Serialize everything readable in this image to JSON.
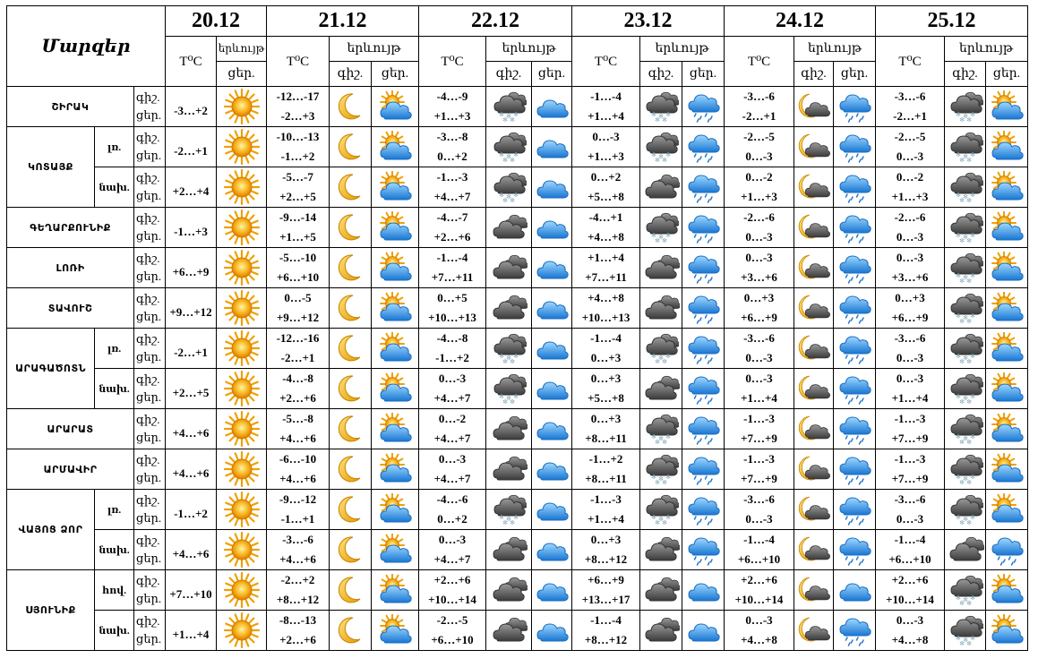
{
  "header": {
    "title": "Մարզեր",
    "dates": [
      "20.12",
      "21.12",
      "22.12",
      "23.12",
      "24.12",
      "25.12"
    ],
    "temp_col": "T⁰C",
    "phenomenon": "երևույթ",
    "phenomenon_day1": "երևույթ",
    "night": "գիշ.",
    "day": "ցեր."
  },
  "icon_legend": {
    "sun": "sun-icon",
    "moon": "moon-icon",
    "partly": "partly-cloudy-icon",
    "snow": "snow-cloud-icon",
    "cloudy": "cloudy-icon",
    "rain": "rain-cloud-icon",
    "night_cloud": "moon-cloud-icon",
    "blue": "blue-cloud-icon"
  },
  "rows": [
    {
      "region": "ՇԻՐԱԿ",
      "sub": "",
      "n": "գիշ.",
      "d": "ցեր.",
      "d20": "-3…+2",
      "t": [
        [
          "-12…-17",
          "-2…+3"
        ],
        [
          "-4…-9",
          "+1…+3"
        ],
        [
          "-1…-4",
          "+1…+4"
        ],
        [
          "-3…-6",
          "-2…+1"
        ],
        [
          "-3…-6",
          "-2…+1"
        ]
      ],
      "i": [
        [
          "moon",
          "partly"
        ],
        [
          "snow",
          "blue"
        ],
        [
          "snow",
          "rain"
        ],
        [
          "night_cloud",
          "rain"
        ],
        [
          "snow",
          "partly"
        ]
      ]
    },
    {
      "region": "ԿՈՏԱՅՔ",
      "sub": "լռ.",
      "n": "գիշ.",
      "d": "ցեր.",
      "d20": "-2…+1",
      "t": [
        [
          "-10…-13",
          "-1…+2"
        ],
        [
          "-3…-8",
          "0…+2"
        ],
        [
          "0…-3",
          "+1…+3"
        ],
        [
          "-2…-5",
          "0…-3"
        ],
        [
          "-2…-5",
          "0…-3"
        ]
      ],
      "i": [
        [
          "moon",
          "partly"
        ],
        [
          "snow",
          "blue"
        ],
        [
          "snow",
          "rain"
        ],
        [
          "night_cloud",
          "rain"
        ],
        [
          "snow",
          "partly"
        ]
      ]
    },
    {
      "region": "",
      "sub": "նախ.",
      "n": "գիշ.",
      "d": "ցեր.",
      "d20": "+2…+4",
      "t": [
        [
          "-5…-7",
          "+2…+5"
        ],
        [
          "-1…-3",
          "+4…+7"
        ],
        [
          "0…+2",
          "+5…+8"
        ],
        [
          "0…-2",
          "+1…+3"
        ],
        [
          "0…-2",
          "+1…+3"
        ]
      ],
      "i": [
        [
          "moon",
          "partly"
        ],
        [
          "snow",
          "blue"
        ],
        [
          "cloudy",
          "rain"
        ],
        [
          "night_cloud",
          "rain"
        ],
        [
          "snow",
          "partly"
        ]
      ]
    },
    {
      "region": "ԳԵՂԱՐՔՈՒՆԻՔ",
      "sub": "",
      "n": "գիշ.",
      "d": "ցեր.",
      "d20": "-1…+3",
      "t": [
        [
          "-9…-14",
          "+1…+5"
        ],
        [
          "-4…-7",
          "+2…+6"
        ],
        [
          "-4…+1",
          "+4…+8"
        ],
        [
          "-2…-6",
          "0…-3"
        ],
        [
          "-2…-6",
          "0…-3"
        ]
      ],
      "i": [
        [
          "moon",
          "partly"
        ],
        [
          "cloudy",
          "blue"
        ],
        [
          "snow",
          "rain"
        ],
        [
          "night_cloud",
          "rain"
        ],
        [
          "snow",
          "partly"
        ]
      ]
    },
    {
      "region": "ԼՈՌԻ",
      "sub": "",
      "n": "գիշ.",
      "d": "ցեր.",
      "d20": "+6…+9",
      "t": [
        [
          "-5…-10",
          "+6…+10"
        ],
        [
          "-1…-4",
          "+7…+11"
        ],
        [
          "+1…+4",
          "+7…+11"
        ],
        [
          "0…-3",
          "+3…+6"
        ],
        [
          "0…-3",
          "+3…+6"
        ]
      ],
      "i": [
        [
          "moon",
          "partly"
        ],
        [
          "cloudy",
          "blue"
        ],
        [
          "cloudy",
          "rain"
        ],
        [
          "night_cloud",
          "rain"
        ],
        [
          "snow",
          "partly"
        ]
      ]
    },
    {
      "region": "ՏԱՎՈՒՇ",
      "sub": "",
      "n": "գիշ.",
      "d": "ցեր.",
      "d20": "+9…+12",
      "t": [
        [
          "0…-5",
          "+9…+12"
        ],
        [
          "0…+5",
          "+10…+13"
        ],
        [
          "+4…+8",
          "+10…+13"
        ],
        [
          "0…+3",
          "+6…+9"
        ],
        [
          "0…+3",
          "+6…+9"
        ]
      ],
      "i": [
        [
          "moon",
          "partly"
        ],
        [
          "cloudy",
          "blue"
        ],
        [
          "cloudy",
          "rain"
        ],
        [
          "night_cloud",
          "rain"
        ],
        [
          "snow",
          "partly"
        ]
      ]
    },
    {
      "region": "ԱՐԱԳԱԾՈՏՆ",
      "sub": "լռ.",
      "n": "գիշ.",
      "d": "ցեր.",
      "d20": "-2…+1",
      "t": [
        [
          "-12…-16",
          "-2…+1"
        ],
        [
          "-4…-8",
          "-1…+2"
        ],
        [
          "-1…-4",
          "0…+3"
        ],
        [
          "-3…-6",
          "0…-3"
        ],
        [
          "-3…-6",
          "0…-3"
        ]
      ],
      "i": [
        [
          "moon",
          "partly"
        ],
        [
          "snow",
          "blue"
        ],
        [
          "snow",
          "rain"
        ],
        [
          "night_cloud",
          "rain"
        ],
        [
          "snow",
          "partly"
        ]
      ]
    },
    {
      "region": "",
      "sub": "նախ.",
      "n": "գիշ.",
      "d": "ցեր.",
      "d20": "+2…+5",
      "t": [
        [
          "-4…-8",
          "+2…+6"
        ],
        [
          "0…-3",
          "+4…+7"
        ],
        [
          "0…+3",
          "+5…+8"
        ],
        [
          "0…-3",
          "+1…+4"
        ],
        [
          "0…-3",
          "+1…+4"
        ]
      ],
      "i": [
        [
          "moon",
          "partly"
        ],
        [
          "snow",
          "blue"
        ],
        [
          "cloudy",
          "rain"
        ],
        [
          "night_cloud",
          "rain"
        ],
        [
          "snow",
          "partly"
        ]
      ]
    },
    {
      "region": "ԱՐԱՐԱՏ",
      "sub": "",
      "n": "գիշ.",
      "d": "ցեր.",
      "d20": "+4…+6",
      "t": [
        [
          "-5…-8",
          "+4…+6"
        ],
        [
          "0…-2",
          "+4…+7"
        ],
        [
          "0…+3",
          "+8…+11"
        ],
        [
          "-1…-3",
          "+7…+9"
        ],
        [
          "-1…-3",
          "+7…+9"
        ]
      ],
      "i": [
        [
          "moon",
          "partly"
        ],
        [
          "cloudy",
          "blue"
        ],
        [
          "snow",
          "rain"
        ],
        [
          "night_cloud",
          "rain"
        ],
        [
          "snow",
          "partly"
        ]
      ]
    },
    {
      "region": "ԱՐՄԱՎԻՐ",
      "sub": "",
      "n": "գիշ.",
      "d": "ցեր.",
      "d20": "+4…+6",
      "t": [
        [
          "-6…-10",
          "+4…+6"
        ],
        [
          "0…-3",
          "+4…+7"
        ],
        [
          "-1…+2",
          "+8…+11"
        ],
        [
          "-1…-3",
          "+7…+9"
        ],
        [
          "-1…-3",
          "+7…+9"
        ]
      ],
      "i": [
        [
          "moon",
          "partly"
        ],
        [
          "cloudy",
          "blue"
        ],
        [
          "snow",
          "rain"
        ],
        [
          "night_cloud",
          "rain"
        ],
        [
          "snow",
          "partly"
        ]
      ]
    },
    {
      "region": "ՎԱՅՈՑ ՁՈՐ",
      "sub": "լռ.",
      "n": "գիշ.",
      "d": "ցեր.",
      "d20": "-1…+2",
      "t": [
        [
          "-9…-12",
          "-1…+1"
        ],
        [
          "-4…-6",
          "0…+2"
        ],
        [
          "-1…-3",
          "+1…+4"
        ],
        [
          "-3…-6",
          "0…-3"
        ],
        [
          "-3…-6",
          "0…-3"
        ]
      ],
      "i": [
        [
          "moon",
          "partly"
        ],
        [
          "snow",
          "blue"
        ],
        [
          "snow",
          "rain"
        ],
        [
          "night_cloud",
          "rain"
        ],
        [
          "snow",
          "partly"
        ]
      ]
    },
    {
      "region": "",
      "sub": "նախ.",
      "n": "գիշ.",
      "d": "ցեր.",
      "d20": "+4…+6",
      "t": [
        [
          "-3…-6",
          "+4…+6"
        ],
        [
          "0…-3",
          "+4…+7"
        ],
        [
          "0…+3",
          "+8…+12"
        ],
        [
          "-1…-4",
          "+6…+10"
        ],
        [
          "-1…-4",
          "+6…+10"
        ]
      ],
      "i": [
        [
          "moon",
          "partly"
        ],
        [
          "cloudy",
          "blue"
        ],
        [
          "cloudy",
          "rain"
        ],
        [
          "night_cloud",
          "rain"
        ],
        [
          "cloudy",
          "rain"
        ]
      ]
    },
    {
      "region": "ՍՅՈՒՆԻՔ",
      "sub": "հով.",
      "n": "գիշ.",
      "d": "ցեր.",
      "d20": "+7…+10",
      "t": [
        [
          "-2…+2",
          "+8…+12"
        ],
        [
          "+2…+6",
          "+10…+14"
        ],
        [
          "+6…+9",
          "+13…+17"
        ],
        [
          "+2…+6",
          "+10…+14"
        ],
        [
          "+2…+6",
          "+10…+14"
        ]
      ],
      "i": [
        [
          "moon",
          "partly"
        ],
        [
          "cloudy",
          "blue"
        ],
        [
          "cloudy",
          "blue"
        ],
        [
          "night_cloud",
          "blue"
        ],
        [
          "snow",
          "partly"
        ]
      ]
    },
    {
      "region": "",
      "sub": "նախ.",
      "n": "գիշ.",
      "d": "ցեր.",
      "d20": "+1…+4",
      "t": [
        [
          "-8…-13",
          "+2…+6"
        ],
        [
          "-2…-5",
          "+6…+10"
        ],
        [
          "-1…-4",
          "+8…+12"
        ],
        [
          "0…-3",
          "+4…+8"
        ],
        [
          "0…-3",
          "+4…+8"
        ]
      ],
      "i": [
        [
          "moon",
          "partly"
        ],
        [
          "cloudy",
          "blue"
        ],
        [
          "cloudy",
          "blue"
        ],
        [
          "night_cloud",
          "rain"
        ],
        [
          "snow",
          "partly"
        ]
      ]
    }
  ]
}
